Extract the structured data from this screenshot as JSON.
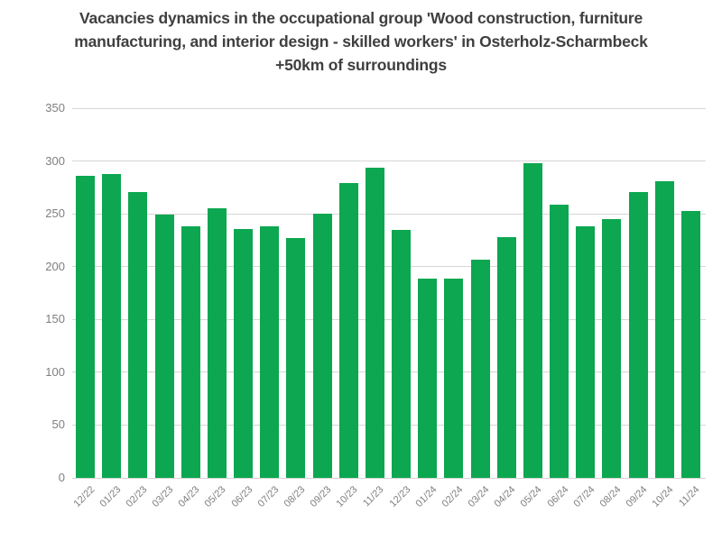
{
  "title_lines": [
    "Vacancies dynamics in the occupational group 'Wood construction, furniture",
    "manufacturing, and interior design - skilled workers' in Osterholz-Scharmbeck",
    "+50km of surroundings"
  ],
  "chart_data": {
    "type": "bar",
    "title": "Vacancies dynamics in the occupational group 'Wood construction, furniture manufacturing, and interior design - skilled workers' in Osterholz-Scharmbeck +50km of surroundings",
    "categories": [
      "12/22",
      "01/23",
      "02/23",
      "03/23",
      "04/23",
      "05/23",
      "06/23",
      "07/23",
      "08/23",
      "09/23",
      "10/23",
      "11/23",
      "12/23",
      "01/24",
      "02/24",
      "03/24",
      "04/24",
      "05/24",
      "06/24",
      "07/24",
      "08/24",
      "09/24",
      "10/24",
      "11/24"
    ],
    "values": [
      286,
      288,
      271,
      249,
      238,
      255,
      236,
      238,
      227,
      250,
      279,
      294,
      235,
      189,
      189,
      207,
      228,
      298,
      259,
      238,
      245,
      271,
      281,
      253
    ],
    "xlabel": "",
    "ylabel": "",
    "ylim": [
      0,
      350
    ],
    "ytick_step": 50,
    "yticks": [
      "0",
      "50",
      "100",
      "150",
      "200",
      "250",
      "300",
      "350"
    ],
    "grid": true,
    "legend": "none",
    "colors": {
      "bar": "#0ca750",
      "grid": "#d6d6d6",
      "axis_labels": "#7f7f7f",
      "title": "#3f3f3f",
      "background": "#ffffff"
    }
  }
}
